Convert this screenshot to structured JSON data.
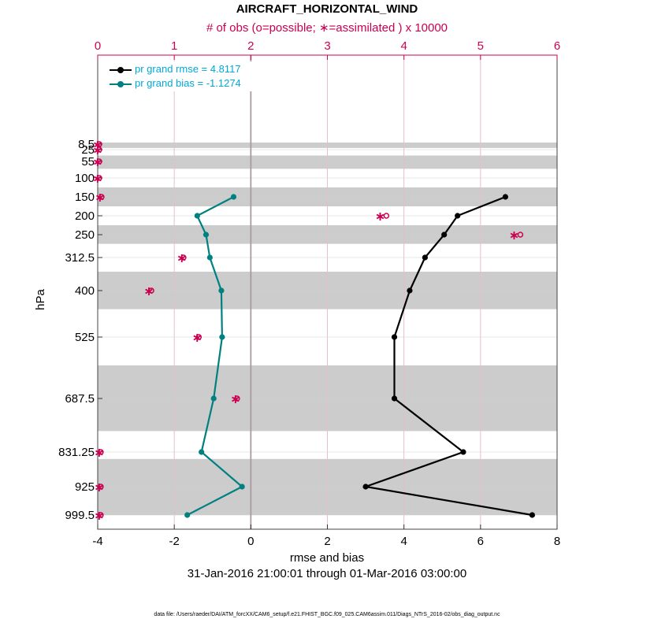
{
  "header": {
    "title": "AIRCRAFT_HORIZONTAL_WIND",
    "top_axis_label": "# of obs (o=possible; ∗=assimilated ) x 10000",
    "x_axis_label": "rmse and bias",
    "date_range": "31-Jan-2016 21:00:01 through 01-Mar-2016 03:00:00",
    "y_axis_label": "hPa",
    "footer": "data file: /Users/raeder/DAI/ATM_forcXX/CAM6_setup/f.e21.FHIST_BGC.f09_025.CAM6assim.011/Diags_NTrS_2016-02/obs_diag_output.nc"
  },
  "legend": {
    "rmse": "pr grand rmse = 4.8117",
    "bias": "pr grand bias = -1.1274"
  },
  "colors": {
    "rmse": "#000000",
    "bias": "#008080",
    "obs": "#cc0052",
    "band": "#cccccc",
    "grid_bottom": "#d9d9d9",
    "grid_top": "#e8b8c8"
  },
  "chart_data": {
    "type": "line",
    "x_bottom": {
      "label": "rmse and bias",
      "lim": [
        -4,
        8
      ],
      "ticks": [
        "-4",
        "-2",
        "0",
        "2",
        "4",
        "6",
        "8"
      ]
    },
    "x_top": {
      "label": "# of obs (o=possible; ∗=assimilated ) x 10000",
      "lim": [
        0,
        6
      ],
      "ticks": [
        "0",
        "1",
        "2",
        "3",
        "4",
        "5",
        "6"
      ]
    },
    "y": {
      "label": "hPa",
      "levels": [
        8.5,
        25,
        55,
        100,
        150,
        200,
        250,
        312.5,
        400,
        525,
        687.5,
        831.25,
        925,
        999.5
      ],
      "tick_labels": [
        "8.5",
        "25",
        "55",
        "100",
        "150",
        "200",
        "250",
        "312.5",
        "400",
        "525",
        "687.5",
        "831.25",
        "925",
        "999.5"
      ],
      "reversed": true
    },
    "bands": [
      [
        0,
        20
      ],
      [
        40,
        75
      ],
      [
        125,
        175
      ],
      [
        225,
        275
      ],
      [
        350,
        450
      ],
      [
        600,
        775
      ],
      [
        850,
        1000
      ]
    ],
    "series": [
      {
        "name": "pr grand rmse = 4.8117",
        "levels": [
          150,
          200,
          250,
          312.5,
          400,
          525,
          687.5,
          831.25,
          925,
          999.5
        ],
        "values": [
          6.65,
          5.4,
          5.05,
          4.55,
          4.15,
          3.75,
          3.75,
          5.55,
          3.0,
          7.35
        ]
      },
      {
        "name": "pr grand bias = -1.1274",
        "levels": [
          150,
          200,
          250,
          312.5,
          400,
          525,
          687.5,
          831.25,
          925,
          999.5
        ],
        "values": [
          -0.45,
          -1.4,
          -1.17,
          -1.07,
          -0.77,
          -0.75,
          -0.97,
          -1.29,
          -0.23,
          -1.66
        ]
      }
    ],
    "obs_possible": {
      "levels": [
        8.5,
        25,
        55,
        100,
        150,
        200,
        250,
        312.5,
        400,
        525,
        687.5,
        831.25,
        925,
        999.5
      ],
      "values": [
        0.0,
        0.0,
        0.0,
        0.0,
        0.03,
        3.75,
        5.5,
        1.1,
        0.68,
        1.3,
        1.8,
        0.02,
        0.02,
        0.02
      ]
    },
    "obs_assimilated": {
      "levels": [
        8.5,
        25,
        55,
        100,
        150,
        200,
        250,
        312.5,
        400,
        525,
        687.5,
        831.25,
        925,
        999.5
      ],
      "values": [
        0.0,
        0.0,
        0.0,
        0.0,
        0.03,
        3.69,
        5.44,
        1.1,
        0.67,
        1.3,
        1.8,
        0.02,
        0.02,
        0.02
      ]
    }
  }
}
